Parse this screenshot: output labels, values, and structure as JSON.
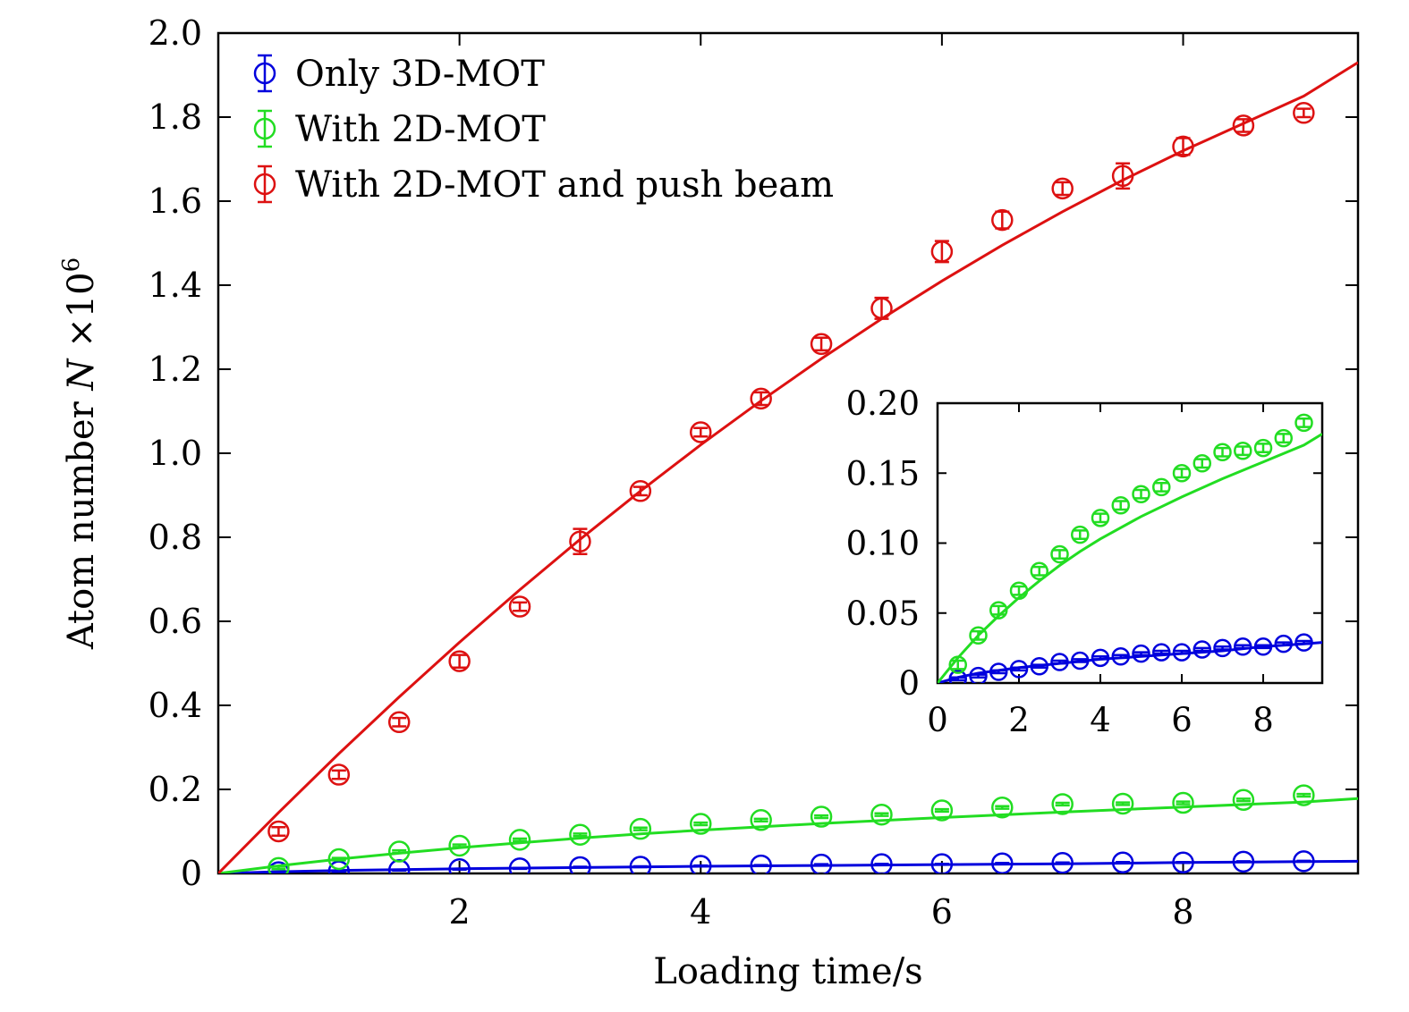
{
  "chart_data": [
    {
      "type": "scatter",
      "title": "",
      "xlabel": "Loading time/s",
      "ylabel_prefix": "Atom number ",
      "ylabel_var": "N",
      "ylabel_suffix": " ×10",
      "ylabel_exp": "6",
      "xlim": [
        0,
        9.45
      ],
      "ylim": [
        0,
        2.0
      ],
      "xticks": [
        2,
        4,
        6,
        8
      ],
      "xtick_labels": [
        "2",
        "4",
        "6",
        "8"
      ],
      "yticks": [
        0,
        0.2,
        0.4,
        0.6,
        0.8,
        1.0,
        1.2,
        1.4,
        1.6,
        1.8,
        2.0
      ],
      "ytick_labels": [
        "0",
        "0.2",
        "0.4",
        "0.6",
        "0.8",
        "1.0",
        "1.2",
        "1.4",
        "1.6",
        "1.8",
        "2.0"
      ],
      "legend_position": "top-left",
      "grid": false,
      "series": [
        {
          "name": "Only 3D-MOT",
          "color": "#0000dd",
          "x": [
            0.5,
            1.0,
            1.5,
            2.0,
            2.5,
            3.0,
            3.5,
            4.0,
            4.5,
            5.0,
            5.5,
            6.0,
            6.5,
            7.0,
            7.5,
            8.0,
            8.5,
            9.0
          ],
          "y": [
            0.003,
            0.005,
            0.008,
            0.01,
            0.012,
            0.015,
            0.016,
            0.018,
            0.019,
            0.021,
            0.022,
            0.022,
            0.024,
            0.025,
            0.026,
            0.026,
            0.028,
            0.029
          ],
          "err": [
            0.001,
            0.001,
            0.001,
            0.001,
            0.001,
            0.001,
            0.001,
            0.001,
            0.001,
            0.001,
            0.001,
            0.001,
            0.001,
            0.001,
            0.001,
            0.001,
            0.001,
            0.001
          ],
          "fit_x": [
            0,
            0.5,
            1,
            1.5,
            2,
            3,
            4,
            5,
            6,
            7,
            8,
            9,
            9.45
          ],
          "fit_y": [
            0,
            0.004,
            0.007,
            0.009,
            0.011,
            0.014,
            0.017,
            0.019,
            0.021,
            0.023,
            0.026,
            0.028,
            0.029
          ]
        },
        {
          "name": "With 2D-MOT",
          "color": "#22dd22",
          "x": [
            0.5,
            1.0,
            1.5,
            2.0,
            2.5,
            3.0,
            3.5,
            4.0,
            4.5,
            5.0,
            5.5,
            6.0,
            6.5,
            7.0,
            7.5,
            8.0,
            8.5,
            9.0
          ],
          "y": [
            0.013,
            0.034,
            0.052,
            0.066,
            0.08,
            0.092,
            0.106,
            0.118,
            0.127,
            0.135,
            0.14,
            0.15,
            0.157,
            0.165,
            0.166,
            0.168,
            0.175,
            0.186
          ],
          "err": [
            0.003,
            0.003,
            0.003,
            0.003,
            0.003,
            0.003,
            0.003,
            0.003,
            0.003,
            0.003,
            0.003,
            0.003,
            0.003,
            0.003,
            0.003,
            0.003,
            0.003,
            0.003
          ],
          "fit_x": [
            0,
            0.5,
            1,
            1.5,
            2,
            2.5,
            3,
            3.5,
            4,
            5,
            6,
            7,
            8,
            9,
            9.45
          ],
          "fit_y": [
            0,
            0.018,
            0.034,
            0.048,
            0.061,
            0.073,
            0.084,
            0.094,
            0.103,
            0.119,
            0.133,
            0.146,
            0.158,
            0.17,
            0.178
          ]
        },
        {
          "name": "With 2D-MOT and push beam",
          "color": "#dd1111",
          "x": [
            0.5,
            1.0,
            1.5,
            2.0,
            2.5,
            3.0,
            3.5,
            4.0,
            4.5,
            5.0,
            5.5,
            6.0,
            6.5,
            7.0,
            7.5,
            8.0,
            8.5,
            9.0
          ],
          "y": [
            0.1,
            0.235,
            0.36,
            0.505,
            0.635,
            0.79,
            0.91,
            1.05,
            1.13,
            1.26,
            1.345,
            1.48,
            1.555,
            1.63,
            1.66,
            1.73,
            1.78,
            1.81
          ],
          "err": [
            0.01,
            0.01,
            0.01,
            0.015,
            0.01,
            0.03,
            0.01,
            0.01,
            0.015,
            0.015,
            0.025,
            0.025,
            0.02,
            0.015,
            0.03,
            0.02,
            0.015,
            0.01
          ],
          "fit_x": [
            0,
            0.5,
            1,
            1.5,
            2,
            2.5,
            3,
            3.5,
            4,
            4.5,
            5,
            5.5,
            6,
            6.5,
            7,
            7.5,
            8,
            8.5,
            9,
            9.45
          ],
          "fit_y": [
            0,
            0.145,
            0.285,
            0.42,
            0.55,
            0.675,
            0.795,
            0.91,
            1.02,
            1.125,
            1.225,
            1.32,
            1.41,
            1.495,
            1.575,
            1.65,
            1.72,
            1.785,
            1.85,
            1.93
          ]
        }
      ]
    },
    {
      "type": "scatter",
      "role": "inset",
      "title": "",
      "xlim": [
        0,
        9.45
      ],
      "ylim": [
        0,
        0.2
      ],
      "xticks": [
        0,
        2,
        4,
        6,
        8
      ],
      "xtick_labels": [
        "0",
        "2",
        "4",
        "6",
        "8"
      ],
      "yticks": [
        0,
        0.05,
        0.1,
        0.15,
        0.2
      ],
      "ytick_labels": [
        "0",
        "0.05",
        "0.10",
        "0.15",
        "0.20"
      ],
      "series_ref": [
        0,
        1
      ]
    }
  ]
}
